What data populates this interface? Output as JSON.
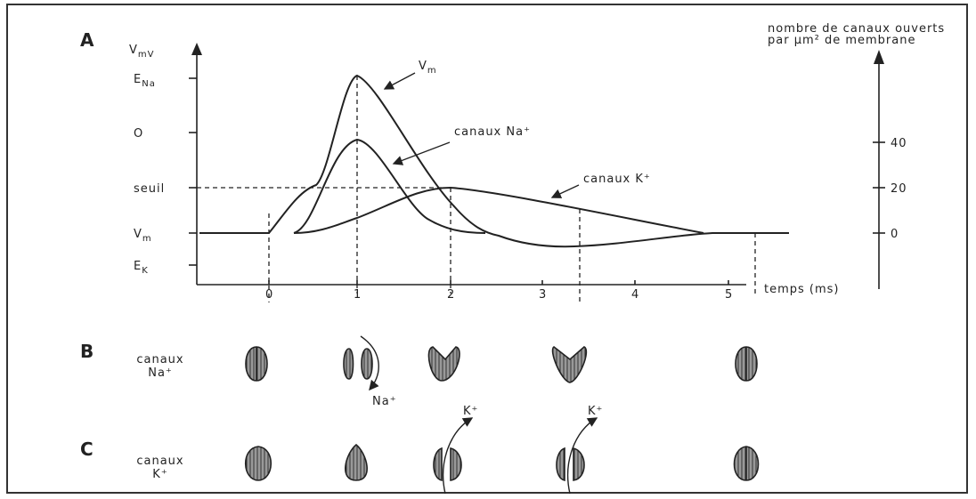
{
  "panel_a": {
    "letter": "A",
    "left_axis_label": {
      "base": "V",
      "sub": "mV"
    },
    "left_labels": [
      {
        "base": "E",
        "sub": "Na"
      },
      {
        "base": "O"
      },
      {
        "base": "seuil"
      },
      {
        "base": "V",
        "sub": "m"
      },
      {
        "base": "E",
        "sub": "K"
      }
    ],
    "right_axis_title": [
      "nombre de canaux ouverts",
      "par µm² de membrane"
    ],
    "right_ticks": [
      40,
      20,
      0
    ],
    "x_ticks": [
      0,
      1,
      2,
      3,
      4,
      5
    ],
    "x_axis_label": "temps (ms)",
    "curve_labels": {
      "vm": {
        "base": "V",
        "sub": "m"
      },
      "na": "canaux Na⁺",
      "k": "canaux K⁺"
    }
  },
  "panel_b": {
    "letter": "B",
    "label": [
      "canaux",
      "Na⁺"
    ],
    "ion": "Na⁺"
  },
  "panel_c": {
    "letter": "C",
    "label": [
      "canaux",
      "K⁺"
    ],
    "ion": "K⁺"
  }
}
